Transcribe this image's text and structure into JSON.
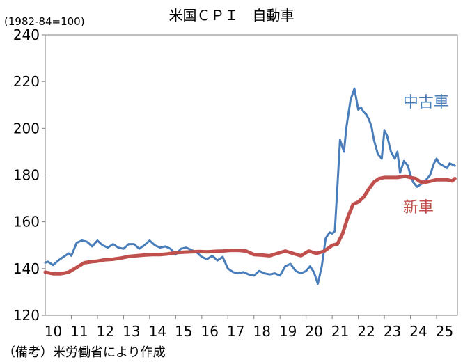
{
  "chart_data": {
    "type": "line",
    "title": "米国ＣＰＩ　自動車",
    "subtitle": "(1982-84=100)",
    "note": "（備考）米労働省により作成",
    "xlabel": "",
    "ylabel": "",
    "ylim": [
      120,
      240
    ],
    "yticks": [
      120,
      140,
      160,
      180,
      200,
      220,
      240
    ],
    "xlim": [
      2010,
      2025.8
    ],
    "xticks": [
      "10",
      "11",
      "12",
      "13",
      "14",
      "15",
      "16",
      "17",
      "18",
      "19",
      "20",
      "21",
      "22",
      "23",
      "24",
      "25"
    ],
    "grid": false,
    "series": [
      {
        "name": "中古車",
        "color": "#4a7ebb",
        "label_anchor": [
          2023.5,
          209
        ],
        "x": [
          2010.0,
          2010.1,
          2010.3,
          2010.5,
          2010.7,
          2010.9,
          2011.0,
          2011.2,
          2011.4,
          2011.6,
          2011.8,
          2012.0,
          2012.2,
          2012.4,
          2012.6,
          2012.8,
          2013.0,
          2013.2,
          2013.4,
          2013.6,
          2013.8,
          2014.0,
          2014.2,
          2014.4,
          2014.6,
          2014.8,
          2015.0,
          2015.2,
          2015.4,
          2015.6,
          2015.8,
          2016.0,
          2016.2,
          2016.4,
          2016.6,
          2016.8,
          2017.0,
          2017.2,
          2017.4,
          2017.6,
          2017.8,
          2018.0,
          2018.2,
          2018.4,
          2018.6,
          2018.8,
          2019.0,
          2019.2,
          2019.4,
          2019.6,
          2019.8,
          2020.0,
          2020.15,
          2020.3,
          2020.45,
          2020.6,
          2020.75,
          2020.9,
          2021.0,
          2021.1,
          2021.2,
          2021.3,
          2021.45,
          2021.55,
          2021.7,
          2021.85,
          2022.0,
          2022.1,
          2022.2,
          2022.3,
          2022.4,
          2022.5,
          2022.6,
          2022.75,
          2022.9,
          2023.0,
          2023.1,
          2023.25,
          2023.4,
          2023.5,
          2023.6,
          2023.75,
          2023.9,
          2024.0,
          2024.1,
          2024.25,
          2024.4,
          2024.5,
          2024.6,
          2024.75,
          2024.9,
          2025.0,
          2025.1,
          2025.25,
          2025.4,
          2025.5,
          2025.6,
          2025.7
        ],
        "values": [
          142.5,
          143.0,
          141.5,
          143.5,
          145.0,
          146.5,
          145.5,
          151.0,
          152.0,
          151.5,
          149.5,
          152.0,
          150.0,
          149.0,
          150.5,
          149.0,
          148.5,
          150.5,
          150.5,
          148.5,
          150.0,
          152.0,
          150.0,
          149.0,
          149.5,
          148.5,
          146.0,
          148.5,
          149.0,
          148.0,
          147.0,
          145.0,
          144.0,
          145.5,
          143.5,
          145.0,
          140.0,
          138.5,
          138.0,
          138.5,
          137.5,
          137.0,
          139.0,
          138.0,
          137.5,
          138.0,
          137.0,
          141.0,
          142.0,
          139.0,
          138.0,
          139.0,
          141.0,
          138.5,
          133.5,
          141.0,
          153.0,
          155.5,
          155.0,
          156.0,
          175.0,
          195.0,
          190.0,
          201.0,
          212.0,
          217.0,
          208.0,
          209.0,
          207.0,
          206.0,
          204.0,
          201.0,
          195.0,
          189.0,
          187.0,
          199.0,
          197.0,
          190.0,
          187.0,
          190.0,
          181.0,
          186.0,
          184.0,
          180.0,
          177.0,
          175.0,
          176.0,
          177.0,
          178.0,
          180.0,
          185.0,
          187.0,
          185.0,
          184.0,
          183.0,
          185.0,
          184.5,
          184.0
        ]
      },
      {
        "name": "新車",
        "color": "#c0504d",
        "label_anchor": [
          2023.5,
          164
        ],
        "x": [
          2010.0,
          2010.3,
          2010.6,
          2010.9,
          2011.2,
          2011.5,
          2011.8,
          2012.0,
          2012.3,
          2012.6,
          2012.9,
          2013.2,
          2013.5,
          2013.8,
          2014.1,
          2014.4,
          2014.7,
          2015.0,
          2015.3,
          2015.6,
          2015.9,
          2016.2,
          2016.5,
          2016.8,
          2017.1,
          2017.4,
          2017.7,
          2018.0,
          2018.3,
          2018.6,
          2018.9,
          2019.2,
          2019.5,
          2019.8,
          2020.1,
          2020.4,
          2020.7,
          2021.0,
          2021.2,
          2021.4,
          2021.6,
          2021.8,
          2022.0,
          2022.2,
          2022.4,
          2022.6,
          2022.8,
          2023.0,
          2023.2,
          2023.5,
          2023.8,
          2024.0,
          2024.2,
          2024.4,
          2024.6,
          2024.8,
          2025.0,
          2025.2,
          2025.4,
          2025.6,
          2025.7
        ],
        "values": [
          138.5,
          137.8,
          137.8,
          138.5,
          140.5,
          142.5,
          143.0,
          143.2,
          143.8,
          144.0,
          144.5,
          145.2,
          145.5,
          145.8,
          146.0,
          146.0,
          146.3,
          146.8,
          147.0,
          147.2,
          147.3,
          147.2,
          147.4,
          147.5,
          147.8,
          147.8,
          147.5,
          146.0,
          145.8,
          145.5,
          146.5,
          147.5,
          146.5,
          145.5,
          147.5,
          146.5,
          147.5,
          150.0,
          150.5,
          155.0,
          162.0,
          167.5,
          168.5,
          170.5,
          174.0,
          177.0,
          178.5,
          179.0,
          179.0,
          179.0,
          179.5,
          179.0,
          178.5,
          177.0,
          177.0,
          177.5,
          178.0,
          178.0,
          178.0,
          177.5,
          178.5
        ]
      }
    ]
  }
}
